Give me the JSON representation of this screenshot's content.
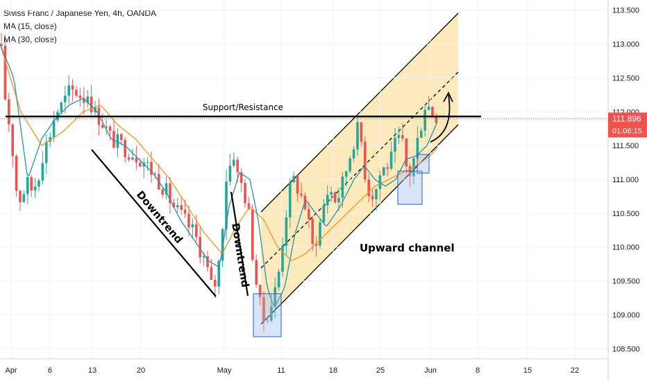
{
  "legend": {
    "symbol": "Swiss Franc / Japanese Yen, 4h, OANDA",
    "ma15": "MA (15, close)",
    "ma30": "MA (30, close)"
  },
  "price_badge": {
    "value": "111.896",
    "countdown": "01:06:15",
    "color": "#ef5350"
  },
  "colors": {
    "up": "#26a69a",
    "down": "#ef5350",
    "ma15": "#2b8fa8",
    "ma30": "#f7931e",
    "channel_fill": "#fbe6b0",
    "box": "#1e5fc8"
  },
  "annotations": {
    "support": "Support/Resistance",
    "downtrend1": "Downtrend",
    "downtrend2": "Downtrend",
    "channel": "Upward channel"
  },
  "chart_data": {
    "type": "candlestick",
    "title": "Swiss Franc / Japanese Yen, 4h, OANDA",
    "ylim": [
      108.35,
      113.65
    ],
    "y_ticks": [
      "108.500",
      "109.000",
      "109.500",
      "110.000",
      "110.500",
      "111.000",
      "111.500",
      "112.000",
      "112.500",
      "113.000",
      "113.500"
    ],
    "x_ticks": [
      "Apr",
      "6",
      "13",
      "20",
      "May",
      "11",
      "18",
      "25",
      "Jun",
      "8",
      "15",
      "22"
    ],
    "last_price": 111.896,
    "support_level": 111.93,
    "path_close": [
      [
        0,
        113.0
      ],
      [
        6,
        112.6
      ],
      [
        10,
        111.5
      ],
      [
        14,
        112.0
      ],
      [
        22,
        110.9
      ],
      [
        30,
        110.7
      ],
      [
        38,
        110.95
      ],
      [
        46,
        110.85
      ],
      [
        54,
        111.0
      ],
      [
        62,
        111.4
      ],
      [
        70,
        111.6
      ],
      [
        80,
        112.0
      ],
      [
        90,
        112.1
      ],
      [
        100,
        112.3
      ],
      [
        110,
        112.3
      ],
      [
        120,
        112.2
      ],
      [
        128,
        112.3
      ],
      [
        134,
        112.0
      ],
      [
        145,
        111.9
      ],
      [
        160,
        111.6
      ],
      [
        175,
        111.5
      ],
      [
        190,
        111.4
      ],
      [
        205,
        111.3
      ],
      [
        220,
        111.1
      ],
      [
        235,
        110.9
      ],
      [
        250,
        110.6
      ],
      [
        265,
        110.4
      ],
      [
        280,
        110.2
      ],
      [
        295,
        109.8
      ],
      [
        305,
        109.4
      ],
      [
        312,
        109.5
      ],
      [
        318,
        110.0
      ],
      [
        325,
        111.0
      ],
      [
        331,
        111.2
      ],
      [
        337,
        111.4
      ],
      [
        343,
        111.0
      ],
      [
        350,
        110.9
      ],
      [
        358,
        110.5
      ],
      [
        366,
        109.7
      ],
      [
        372,
        109.3
      ],
      [
        378,
        108.9
      ],
      [
        384,
        109.0
      ],
      [
        392,
        109.2
      ],
      [
        400,
        109.5
      ],
      [
        408,
        110.2
      ],
      [
        416,
        110.8
      ],
      [
        424,
        111.0
      ],
      [
        432,
        110.8
      ],
      [
        440,
        110.6
      ],
      [
        450,
        110.0
      ],
      [
        458,
        110.2
      ],
      [
        466,
        110.6
      ],
      [
        474,
        110.9
      ],
      [
        482,
        110.7
      ],
      [
        490,
        110.8
      ],
      [
        500,
        111.2
      ],
      [
        510,
        111.6
      ],
      [
        518,
        111.8
      ],
      [
        524,
        111.2
      ],
      [
        532,
        110.8
      ],
      [
        540,
        110.8
      ],
      [
        548,
        111.1
      ],
      [
        556,
        111.2
      ],
      [
        564,
        111.3
      ],
      [
        572,
        111.6
      ],
      [
        580,
        111.5
      ],
      [
        588,
        111.0
      ],
      [
        596,
        111.3
      ],
      [
        602,
        111.6
      ],
      [
        608,
        111.9
      ],
      [
        614,
        112.2
      ],
      [
        620,
        112.0
      ],
      [
        628,
        111.95
      ]
    ],
    "path_ma15": [
      [
        0,
        113.0
      ],
      [
        20,
        112.5
      ],
      [
        40,
        111.0
      ],
      [
        60,
        111.6
      ],
      [
        80,
        111.9
      ],
      [
        100,
        112.1
      ],
      [
        120,
        112.2
      ],
      [
        140,
        112.0
      ],
      [
        160,
        111.6
      ],
      [
        180,
        111.5
      ],
      [
        200,
        111.3
      ],
      [
        220,
        111.1
      ],
      [
        240,
        110.8
      ],
      [
        260,
        110.4
      ],
      [
        280,
        110.1
      ],
      [
        300,
        109.8
      ],
      [
        316,
        109.7
      ],
      [
        330,
        110.6
      ],
      [
        345,
        111.1
      ],
      [
        360,
        111.0
      ],
      [
        372,
        110.4
      ],
      [
        385,
        109.4
      ],
      [
        395,
        109.1
      ],
      [
        410,
        109.4
      ],
      [
        425,
        110.2
      ],
      [
        440,
        110.7
      ],
      [
        455,
        110.5
      ],
      [
        470,
        110.3
      ],
      [
        490,
        110.6
      ],
      [
        510,
        111.0
      ],
      [
        525,
        111.2
      ],
      [
        540,
        111.0
      ],
      [
        555,
        110.9
      ],
      [
        570,
        111.0
      ],
      [
        585,
        111.3
      ],
      [
        600,
        111.35
      ],
      [
        615,
        111.5
      ],
      [
        630,
        111.85
      ]
    ],
    "path_ma30": [
      [
        0,
        113.0
      ],
      [
        30,
        112.0
      ],
      [
        60,
        111.5
      ],
      [
        90,
        111.7
      ],
      [
        120,
        112.0
      ],
      [
        145,
        112.1
      ],
      [
        170,
        111.8
      ],
      [
        195,
        111.6
      ],
      [
        220,
        111.3
      ],
      [
        245,
        111.0
      ],
      [
        270,
        110.6
      ],
      [
        295,
        110.2
      ],
      [
        320,
        109.9
      ],
      [
        340,
        110.3
      ],
      [
        360,
        110.6
      ],
      [
        380,
        110.4
      ],
      [
        400,
        110.0
      ],
      [
        420,
        109.8
      ],
      [
        440,
        109.9
      ],
      [
        460,
        110.1
      ],
      [
        480,
        110.3
      ],
      [
        500,
        110.5
      ],
      [
        520,
        110.7
      ],
      [
        540,
        110.9
      ],
      [
        560,
        111.0
      ],
      [
        580,
        111.1
      ],
      [
        600,
        111.2
      ],
      [
        620,
        111.35
      ],
      [
        632,
        111.5
      ]
    ],
    "series": [
      {
        "name": "MA (15, close)",
        "role": "ma15"
      },
      {
        "name": "MA (30, close)",
        "role": "ma30"
      }
    ]
  }
}
